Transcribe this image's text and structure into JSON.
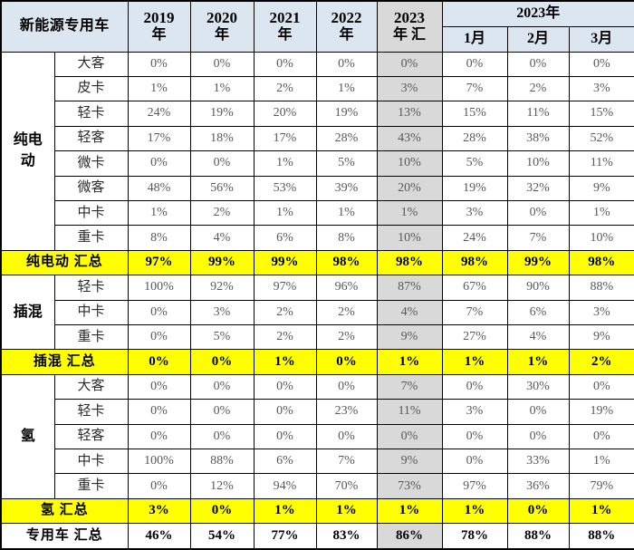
{
  "colors": {
    "header_bg": "#dce6f1",
    "ytd_col_bg": "#d9d9d9",
    "summary_bg": "#ffff00",
    "border": "#000000",
    "data_text": "#595959"
  },
  "chart_data": {
    "type": "table",
    "title": "新能源专用车",
    "year_columns": [
      {
        "top": "2019",
        "bottom": "年"
      },
      {
        "top": "2020",
        "bottom": "年"
      },
      {
        "top": "2021",
        "bottom": "年"
      },
      {
        "top": "2022",
        "bottom": "年"
      }
    ],
    "ytd_column": {
      "top": "2023",
      "bottom": "年 汇"
    },
    "month_group_label": "2023年",
    "month_columns": [
      "1月",
      "2月",
      "3月"
    ],
    "groups": [
      {
        "name": "纯电动",
        "rows": [
          {
            "type": "大客",
            "values": [
              "0%",
              "0%",
              "0%",
              "0%",
              "0%",
              "0%",
              "0%",
              "0%"
            ]
          },
          {
            "type": "皮卡",
            "values": [
              "1%",
              "1%",
              "2%",
              "1%",
              "3%",
              "7%",
              "2%",
              "3%"
            ]
          },
          {
            "type": "轻卡",
            "values": [
              "24%",
              "19%",
              "20%",
              "19%",
              "13%",
              "15%",
              "11%",
              "15%"
            ]
          },
          {
            "type": "轻客",
            "values": [
              "17%",
              "18%",
              "17%",
              "28%",
              "43%",
              "28%",
              "38%",
              "52%"
            ]
          },
          {
            "type": "微卡",
            "values": [
              "0%",
              "0%",
              "1%",
              "5%",
              "10%",
              "5%",
              "10%",
              "11%"
            ]
          },
          {
            "type": "微客",
            "values": [
              "48%",
              "56%",
              "53%",
              "39%",
              "20%",
              "19%",
              "32%",
              "9%"
            ]
          },
          {
            "type": "中卡",
            "values": [
              "1%",
              "2%",
              "1%",
              "1%",
              "1%",
              "3%",
              "0%",
              "1%"
            ]
          },
          {
            "type": "重卡",
            "values": [
              "8%",
              "4%",
              "6%",
              "8%",
              "10%",
              "24%",
              "7%",
              "10%"
            ]
          }
        ],
        "summary": {
          "label": "纯电动 汇总",
          "values": [
            "97%",
            "99%",
            "99%",
            "98%",
            "98%",
            "98%",
            "99%",
            "98%"
          ]
        }
      },
      {
        "name": "插混",
        "rows": [
          {
            "type": "轻卡",
            "values": [
              "100%",
              "92%",
              "97%",
              "96%",
              "87%",
              "67%",
              "90%",
              "88%"
            ]
          },
          {
            "type": "中卡",
            "values": [
              "0%",
              "3%",
              "2%",
              "2%",
              "4%",
              "7%",
              "6%",
              "3%"
            ]
          },
          {
            "type": "重卡",
            "values": [
              "0%",
              "5%",
              "2%",
              "2%",
              "9%",
              "27%",
              "4%",
              "9%"
            ]
          }
        ],
        "summary": {
          "label": "插混 汇总",
          "values": [
            "0%",
            "0%",
            "1%",
            "0%",
            "1%",
            "1%",
            "1%",
            "2%"
          ]
        }
      },
      {
        "name": "氢",
        "rows": [
          {
            "type": "大客",
            "values": [
              "0%",
              "0%",
              "0%",
              "0%",
              "7%",
              "0%",
              "30%",
              "0%"
            ]
          },
          {
            "type": "轻卡",
            "values": [
              "0%",
              "0%",
              "0%",
              "23%",
              "11%",
              "3%",
              "0%",
              "19%"
            ]
          },
          {
            "type": "轻客",
            "values": [
              "0%",
              "0%",
              "0%",
              "0%",
              "0%",
              "0%",
              "0%",
              "0%"
            ]
          },
          {
            "type": "中卡",
            "values": [
              "100%",
              "88%",
              "6%",
              "7%",
              "9%",
              "0%",
              "33%",
              "1%"
            ]
          },
          {
            "type": "重卡",
            "values": [
              "0%",
              "12%",
              "94%",
              "70%",
              "73%",
              "97%",
              "36%",
              "79%"
            ]
          }
        ],
        "summary": {
          "label": "氢 汇总",
          "values": [
            "3%",
            "0%",
            "1%",
            "1%",
            "1%",
            "1%",
            "0%",
            "1%"
          ]
        }
      }
    ],
    "grand_summary": {
      "label": "专用车 汇总",
      "values": [
        "46%",
        "54%",
        "77%",
        "83%",
        "86%",
        "78%",
        "88%",
        "88%"
      ]
    }
  }
}
